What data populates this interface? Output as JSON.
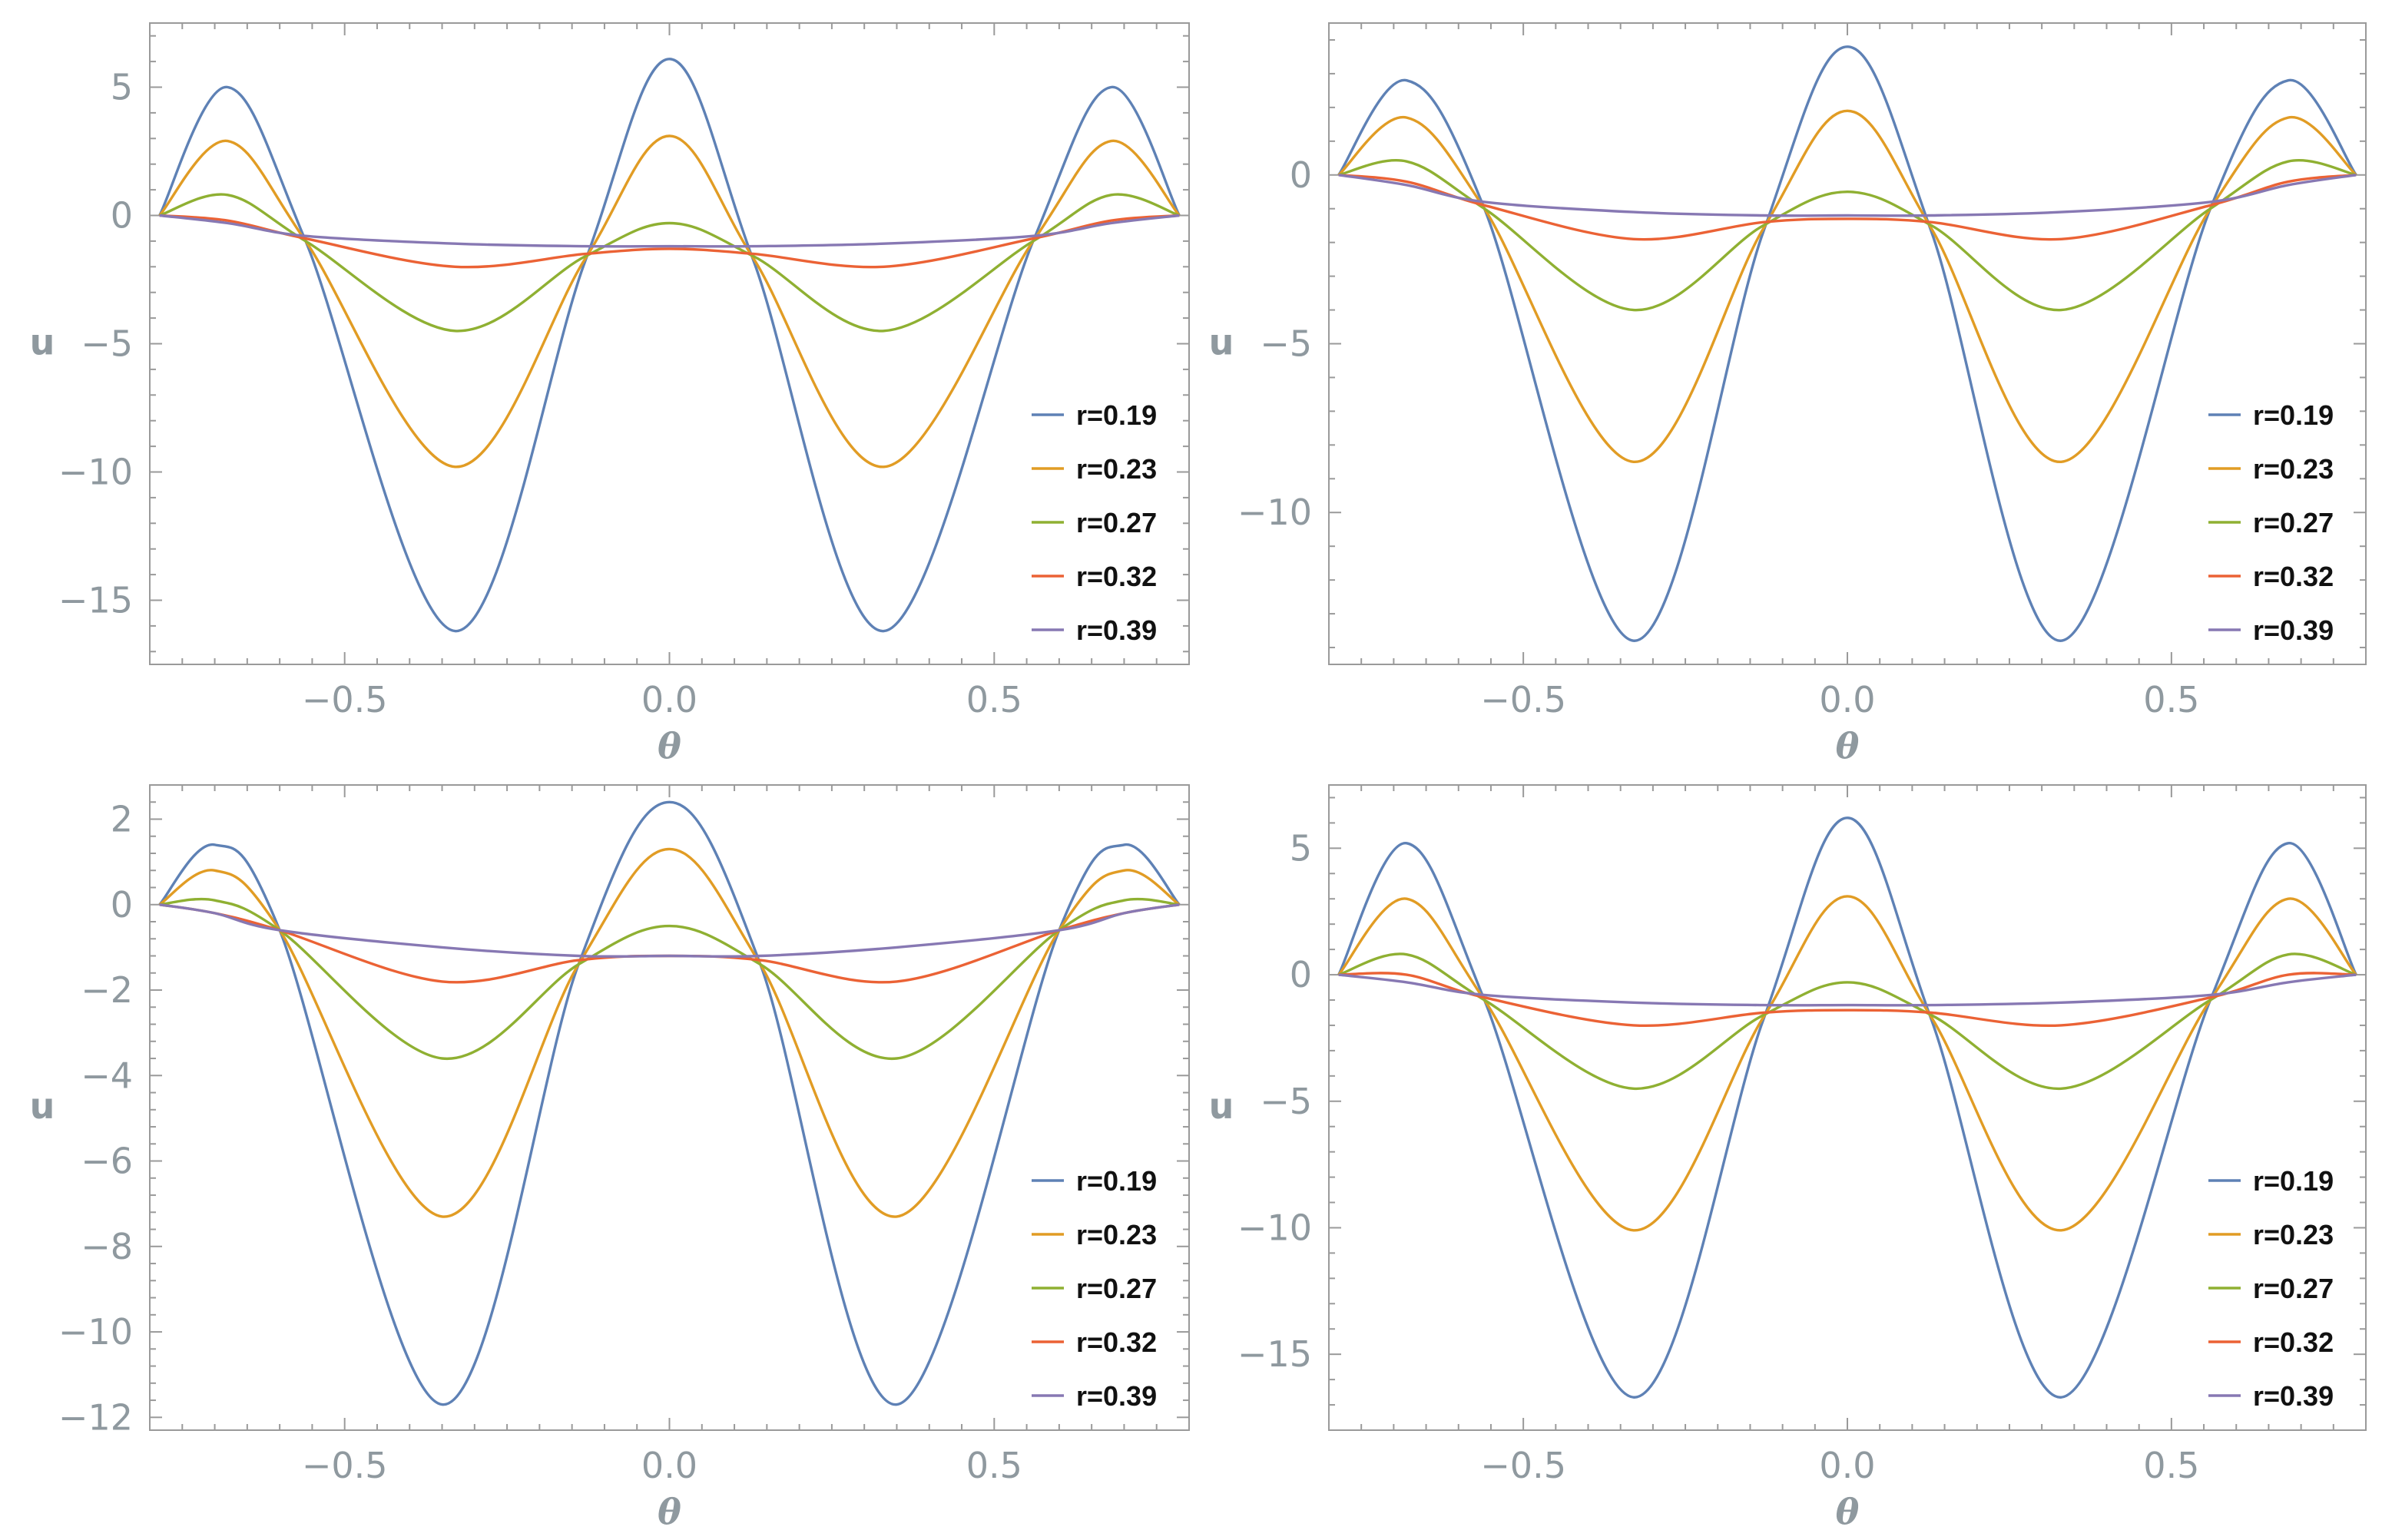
{
  "chart_data": [
    {
      "type": "line",
      "title": "",
      "xlabel": "θ",
      "ylabel": "u",
      "xlim": [
        -0.8,
        0.8
      ],
      "ylim": [
        -17.5,
        7.5
      ],
      "xticks": [
        -0.5,
        0.0,
        0.5
      ],
      "xtick_labels": [
        "−0.5",
        "0.0",
        "0.5"
      ],
      "yticks": [
        5,
        0,
        -5,
        -10,
        -15
      ],
      "ytick_labels": [
        "5",
        "0",
        "−5",
        "−10",
        "−15"
      ],
      "grid": false,
      "legend_position": "lower-right",
      "series": [
        {
          "name": "r=0.19",
          "color": "#5e81b5",
          "x": [
            -0.785,
            -0.68,
            -0.56,
            -0.33,
            -0.13,
            0.0,
            0.13,
            0.33,
            0.56,
            0.68,
            0.785
          ],
          "y": [
            0,
            5.0,
            -1.0,
            -16.2,
            -1.8,
            6.1,
            -1.8,
            -16.2,
            -1.0,
            5.0,
            0
          ]
        },
        {
          "name": "r=0.23",
          "color": "#e19c24",
          "x": [
            -0.785,
            -0.68,
            -0.56,
            -0.33,
            -0.13,
            0.0,
            0.13,
            0.33,
            0.56,
            0.68,
            0.785
          ],
          "y": [
            0,
            2.9,
            -1.0,
            -9.8,
            -1.7,
            3.1,
            -1.7,
            -9.8,
            -1.0,
            2.9,
            0
          ]
        },
        {
          "name": "r=0.27",
          "color": "#8fb032",
          "x": [
            -0.785,
            -0.68,
            -0.56,
            -0.33,
            -0.13,
            0.0,
            0.13,
            0.33,
            0.56,
            0.68,
            0.785
          ],
          "y": [
            0,
            0.8,
            -1.0,
            -4.5,
            -1.6,
            -0.3,
            -1.6,
            -4.5,
            -1.0,
            0.8,
            0
          ]
        },
        {
          "name": "r=0.32",
          "color": "#eb6235",
          "x": [
            -0.785,
            -0.68,
            -0.56,
            -0.33,
            -0.13,
            0.0,
            0.13,
            0.33,
            0.56,
            0.68,
            0.785
          ],
          "y": [
            0,
            -0.2,
            -0.9,
            -2.0,
            -1.5,
            -1.3,
            -1.5,
            -2.0,
            -0.9,
            -0.2,
            0
          ]
        },
        {
          "name": "r=0.39",
          "color": "#8778b3",
          "x": [
            -0.785,
            -0.68,
            -0.56,
            -0.33,
            -0.13,
            0.0,
            0.13,
            0.33,
            0.56,
            0.68,
            0.785
          ],
          "y": [
            0,
            -0.3,
            -0.8,
            -1.1,
            -1.2,
            -1.2,
            -1.2,
            -1.1,
            -0.8,
            -0.3,
            0
          ]
        }
      ]
    },
    {
      "type": "line",
      "title": "",
      "xlabel": "θ",
      "ylabel": "u",
      "xlim": [
        -0.8,
        0.8
      ],
      "ylim": [
        -14.5,
        4.5
      ],
      "xticks": [
        -0.5,
        0.0,
        0.5
      ],
      "xtick_labels": [
        "−0.5",
        "0.0",
        "0.5"
      ],
      "yticks": [
        0,
        -5,
        -10
      ],
      "ytick_labels": [
        "0",
        "−5",
        "−10"
      ],
      "grid": false,
      "legend_position": "lower-right",
      "series": [
        {
          "name": "r=0.19",
          "color": "#5e81b5",
          "x": [
            -0.785,
            -0.68,
            -0.56,
            -0.33,
            -0.13,
            0.0,
            0.13,
            0.33,
            0.56,
            0.68,
            0.785
          ],
          "y": [
            0,
            2.8,
            -1.0,
            -13.8,
            -1.7,
            3.8,
            -1.7,
            -13.8,
            -1.0,
            2.8,
            0
          ]
        },
        {
          "name": "r=0.23",
          "color": "#e19c24",
          "x": [
            -0.785,
            -0.68,
            -0.56,
            -0.33,
            -0.13,
            0.0,
            0.13,
            0.33,
            0.56,
            0.68,
            0.785
          ],
          "y": [
            0,
            1.7,
            -1.0,
            -8.5,
            -1.6,
            1.9,
            -1.6,
            -8.5,
            -1.0,
            1.7,
            0
          ]
        },
        {
          "name": "r=0.27",
          "color": "#8fb032",
          "x": [
            -0.785,
            -0.68,
            -0.56,
            -0.33,
            -0.13,
            0.0,
            0.13,
            0.33,
            0.56,
            0.68,
            0.785
          ],
          "y": [
            0,
            0.4,
            -1.0,
            -4.0,
            -1.5,
            -0.5,
            -1.5,
            -4.0,
            -1.0,
            0.4,
            0
          ]
        },
        {
          "name": "r=0.32",
          "color": "#eb6235",
          "x": [
            -0.785,
            -0.68,
            -0.56,
            -0.33,
            -0.13,
            0.0,
            0.13,
            0.33,
            0.56,
            0.68,
            0.785
          ],
          "y": [
            0,
            -0.2,
            -0.9,
            -1.9,
            -1.4,
            -1.3,
            -1.4,
            -1.9,
            -0.9,
            -0.2,
            0
          ]
        },
        {
          "name": "r=0.39",
          "color": "#8778b3",
          "x": [
            -0.785,
            -0.68,
            -0.56,
            -0.33,
            -0.13,
            0.0,
            0.13,
            0.33,
            0.56,
            0.68,
            0.785
          ],
          "y": [
            0,
            -0.3,
            -0.8,
            -1.1,
            -1.2,
            -1.2,
            -1.2,
            -1.1,
            -0.8,
            -0.3,
            0
          ]
        }
      ]
    },
    {
      "type": "line",
      "title": "",
      "xlabel": "θ",
      "ylabel": "u",
      "xlim": [
        -0.8,
        0.8
      ],
      "ylim": [
        -12.3,
        2.8
      ],
      "xticks": [
        -0.5,
        0.0,
        0.5
      ],
      "xtick_labels": [
        "−0.5",
        "0.0",
        "0.5"
      ],
      "yticks": [
        2,
        0,
        -2,
        -4,
        -6,
        -8,
        -10,
        -12
      ],
      "ytick_labels": [
        "2",
        "0",
        "−2",
        "−4",
        "−6",
        "−8",
        "−10",
        "−12"
      ],
      "grid": false,
      "legend_position": "lower-right",
      "series": [
        {
          "name": "r=0.19",
          "color": "#5e81b5",
          "x": [
            -0.785,
            -0.7,
            -0.6,
            -0.35,
            -0.14,
            0.0,
            0.14,
            0.35,
            0.6,
            0.7,
            0.785
          ],
          "y": [
            0,
            1.4,
            -0.6,
            -11.7,
            -1.4,
            2.4,
            -1.4,
            -11.7,
            -0.6,
            1.4,
            0
          ]
        },
        {
          "name": "r=0.23",
          "color": "#e19c24",
          "x": [
            -0.785,
            -0.7,
            -0.6,
            -0.35,
            -0.14,
            0.0,
            0.14,
            0.35,
            0.6,
            0.7,
            0.785
          ],
          "y": [
            0,
            0.8,
            -0.6,
            -7.3,
            -1.4,
            1.3,
            -1.4,
            -7.3,
            -0.6,
            0.8,
            0
          ]
        },
        {
          "name": "r=0.27",
          "color": "#8fb032",
          "x": [
            -0.785,
            -0.7,
            -0.6,
            -0.35,
            -0.14,
            0.0,
            0.14,
            0.35,
            0.6,
            0.7,
            0.785
          ],
          "y": [
            0,
            0.1,
            -0.6,
            -3.6,
            -1.4,
            -0.5,
            -1.4,
            -3.6,
            -0.6,
            0.1,
            0
          ]
        },
        {
          "name": "r=0.32",
          "color": "#eb6235",
          "x": [
            -0.785,
            -0.7,
            -0.6,
            -0.35,
            -0.14,
            0.0,
            0.14,
            0.35,
            0.6,
            0.7,
            0.785
          ],
          "y": [
            0,
            -0.2,
            -0.6,
            -1.8,
            -1.3,
            -1.2,
            -1.3,
            -1.8,
            -0.6,
            -0.2,
            0
          ]
        },
        {
          "name": "r=0.39",
          "color": "#8778b3",
          "x": [
            -0.785,
            -0.7,
            -0.6,
            -0.35,
            -0.14,
            0.0,
            0.14,
            0.35,
            0.6,
            0.7,
            0.785
          ],
          "y": [
            0,
            -0.2,
            -0.6,
            -1.0,
            -1.2,
            -1.2,
            -1.2,
            -1.0,
            -0.6,
            -0.2,
            0
          ]
        }
      ]
    },
    {
      "type": "line",
      "title": "",
      "xlabel": "θ",
      "ylabel": "u",
      "xlim": [
        -0.8,
        0.8
      ],
      "ylim": [
        -18.0,
        7.5
      ],
      "xticks": [
        -0.5,
        0.0,
        0.5
      ],
      "xtick_labels": [
        "−0.5",
        "0.0",
        "0.5"
      ],
      "yticks": [
        5,
        0,
        -5,
        -10,
        -15
      ],
      "ytick_labels": [
        "5",
        "0",
        "−5",
        "−10",
        "−15"
      ],
      "grid": false,
      "legend_position": "lower-right",
      "series": [
        {
          "name": "r=0.19",
          "color": "#5e81b5",
          "x": [
            -0.785,
            -0.68,
            -0.56,
            -0.33,
            -0.13,
            0.0,
            0.13,
            0.33,
            0.56,
            0.68,
            0.785
          ],
          "y": [
            0,
            5.2,
            -1.0,
            -16.7,
            -1.8,
            6.2,
            -1.8,
            -16.7,
            -1.0,
            5.2,
            0
          ]
        },
        {
          "name": "r=0.23",
          "color": "#e19c24",
          "x": [
            -0.785,
            -0.68,
            -0.56,
            -0.33,
            -0.13,
            0.0,
            0.13,
            0.33,
            0.56,
            0.68,
            0.785
          ],
          "y": [
            0,
            3.0,
            -1.0,
            -10.1,
            -1.7,
            3.1,
            -1.7,
            -10.1,
            -1.0,
            3.0,
            0
          ]
        },
        {
          "name": "r=0.27",
          "color": "#8fb032",
          "x": [
            -0.785,
            -0.68,
            -0.56,
            -0.33,
            -0.13,
            0.0,
            0.13,
            0.33,
            0.56,
            0.68,
            0.785
          ],
          "y": [
            0,
            0.8,
            -1.0,
            -4.5,
            -1.6,
            -0.3,
            -1.6,
            -4.5,
            -1.0,
            0.8,
            0
          ]
        },
        {
          "name": "r=0.32",
          "color": "#eb6235",
          "x": [
            -0.785,
            -0.68,
            -0.56,
            -0.33,
            -0.13,
            0.0,
            0.13,
            0.33,
            0.56,
            0.68,
            0.785
          ],
          "y": [
            0,
            0.0,
            -0.9,
            -2.0,
            -1.5,
            -1.4,
            -1.5,
            -2.0,
            -0.9,
            0.0,
            0
          ]
        },
        {
          "name": "r=0.39",
          "color": "#8778b3",
          "x": [
            -0.785,
            -0.68,
            -0.56,
            -0.33,
            -0.13,
            0.0,
            0.13,
            0.33,
            0.56,
            0.68,
            0.785
          ],
          "y": [
            0,
            -0.3,
            -0.8,
            -1.1,
            -1.2,
            -1.2,
            -1.2,
            -1.1,
            -0.8,
            -0.3,
            0
          ]
        }
      ]
    }
  ]
}
